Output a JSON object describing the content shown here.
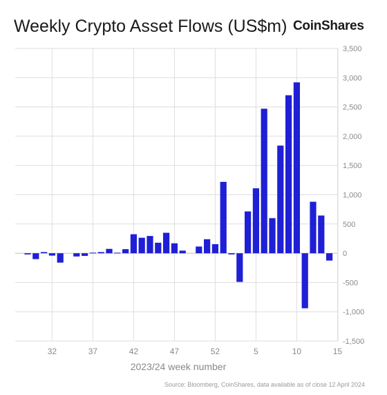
{
  "header": {
    "title": "Weekly Crypto Asset Flows (US$m)",
    "brand": "CoinShares"
  },
  "footer": {
    "source": "Source: Bloomberg, CoinShares, data available as of close 12 April 2024"
  },
  "chart_data": {
    "type": "bar",
    "title": "Weekly Crypto Asset Flows (US$m)",
    "xlabel": "2023/24 week number",
    "ylabel": "",
    "ylim": [
      -1500,
      3500
    ],
    "yticks": [
      3500,
      3000,
      2500,
      2000,
      1500,
      1000,
      500,
      0,
      -500,
      -1000,
      -1500
    ],
    "ytick_labels": [
      "3,500",
      "3,000",
      "2,500",
      "2,000",
      "1,500",
      "1,000",
      "500",
      "0",
      "-500",
      "-1,000",
      "-1,500"
    ],
    "xtick_labels": [
      "32",
      "37",
      "42",
      "47",
      "52",
      "5",
      "10",
      "15"
    ],
    "grid": true,
    "bar_color": "#1f1fd6",
    "categories": [
      "29",
      "30",
      "31",
      "32",
      "33",
      "34",
      "35",
      "36",
      "37",
      "38",
      "39",
      "40",
      "41",
      "42",
      "43",
      "44",
      "45",
      "46",
      "47",
      "48",
      "49",
      "50",
      "51",
      "52",
      "1",
      "2",
      "3",
      "4",
      "5",
      "6",
      "7",
      "8",
      "9",
      "10",
      "11",
      "12",
      "13",
      "14",
      "15"
    ],
    "values": [
      -20,
      -100,
      20,
      -40,
      -160,
      0,
      -55,
      -45,
      10,
      20,
      75,
      10,
      70,
      325,
      265,
      295,
      180,
      350,
      170,
      45,
      0,
      115,
      240,
      155,
      1220,
      -20,
      -490,
      715,
      1110,
      2470,
      600,
      1840,
      2700,
      2920,
      -940,
      880,
      645,
      -125,
      0
    ]
  }
}
